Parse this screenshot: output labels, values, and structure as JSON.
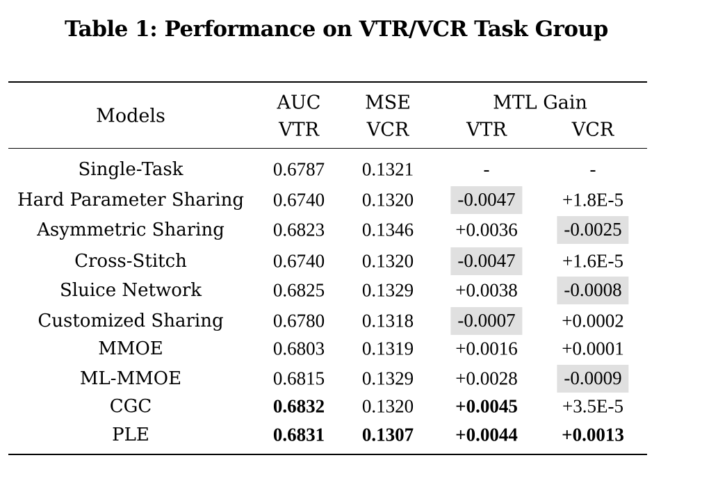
{
  "caption": "Table 1: Performance on VTR/VCR Task Group",
  "header": {
    "models": "Models",
    "auc": "AUC",
    "auc_sub": "VTR",
    "mse": "MSE",
    "mse_sub": "VCR",
    "mtl_gain": "MTL Gain",
    "gain_vtr": "VTR",
    "gain_vcr": "VCR"
  },
  "rows": [
    {
      "model": "Single-Task",
      "auc": "0.6787",
      "mse": "0.1321",
      "gain_vtr": "-",
      "gain_vcr": "-",
      "auc_bold": false,
      "mse_bold": false,
      "gain_vtr_bold": false,
      "gain_vcr_bold": false,
      "gain_vtr_shaded": false,
      "gain_vcr_shaded": false
    },
    {
      "model": "Hard Parameter Sharing",
      "auc": "0.6740",
      "mse": "0.1320",
      "gain_vtr": "-0.0047",
      "gain_vcr": "+1.8E-5",
      "auc_bold": false,
      "mse_bold": false,
      "gain_vtr_bold": false,
      "gain_vcr_bold": false,
      "gain_vtr_shaded": true,
      "gain_vcr_shaded": false
    },
    {
      "model": "Asymmetric Sharing",
      "auc": "0.6823",
      "mse": "0.1346",
      "gain_vtr": "+0.0036",
      "gain_vcr": "-0.0025",
      "auc_bold": false,
      "mse_bold": false,
      "gain_vtr_bold": false,
      "gain_vcr_bold": false,
      "gain_vtr_shaded": false,
      "gain_vcr_shaded": true
    },
    {
      "model": "Cross-Stitch",
      "auc": "0.6740",
      "mse": "0.1320",
      "gain_vtr": "-0.0047",
      "gain_vcr": "+1.6E-5",
      "auc_bold": false,
      "mse_bold": false,
      "gain_vtr_bold": false,
      "gain_vcr_bold": false,
      "gain_vtr_shaded": true,
      "gain_vcr_shaded": false
    },
    {
      "model": "Sluice Network",
      "auc": "0.6825",
      "mse": "0.1329",
      "gain_vtr": "+0.0038",
      "gain_vcr": "-0.0008",
      "auc_bold": false,
      "mse_bold": false,
      "gain_vtr_bold": false,
      "gain_vcr_bold": false,
      "gain_vtr_shaded": false,
      "gain_vcr_shaded": true
    },
    {
      "model": "Customized Sharing",
      "auc": "0.6780",
      "mse": "0.1318",
      "gain_vtr": "-0.0007",
      "gain_vcr": "+0.0002",
      "auc_bold": false,
      "mse_bold": false,
      "gain_vtr_bold": false,
      "gain_vcr_bold": false,
      "gain_vtr_shaded": true,
      "gain_vcr_shaded": false
    },
    {
      "model": "MMOE",
      "auc": "0.6803",
      "mse": "0.1319",
      "gain_vtr": "+0.0016",
      "gain_vcr": "+0.0001",
      "auc_bold": false,
      "mse_bold": false,
      "gain_vtr_bold": false,
      "gain_vcr_bold": false,
      "gain_vtr_shaded": false,
      "gain_vcr_shaded": false
    },
    {
      "model": "ML-MMOE",
      "auc": "0.6815",
      "mse": "0.1329",
      "gain_vtr": "+0.0028",
      "gain_vcr": "-0.0009",
      "auc_bold": false,
      "mse_bold": false,
      "gain_vtr_bold": false,
      "gain_vcr_bold": false,
      "gain_vtr_shaded": false,
      "gain_vcr_shaded": true
    },
    {
      "model": "CGC",
      "auc": "0.6832",
      "mse": "0.1320",
      "gain_vtr": "+0.0045",
      "gain_vcr": "+3.5E-5",
      "auc_bold": true,
      "mse_bold": false,
      "gain_vtr_bold": true,
      "gain_vcr_bold": false,
      "gain_vtr_shaded": false,
      "gain_vcr_shaded": false
    },
    {
      "model": "PLE",
      "auc": "0.6831",
      "mse": "0.1307",
      "gain_vtr": "+0.0044",
      "gain_vcr": "+0.0013",
      "auc_bold": true,
      "mse_bold": true,
      "gain_vtr_bold": true,
      "gain_vcr_bold": true,
      "gain_vtr_shaded": false,
      "gain_vcr_shaded": false
    }
  ],
  "colors": {
    "shade": "#e0e0e0",
    "rule": "#000000"
  }
}
